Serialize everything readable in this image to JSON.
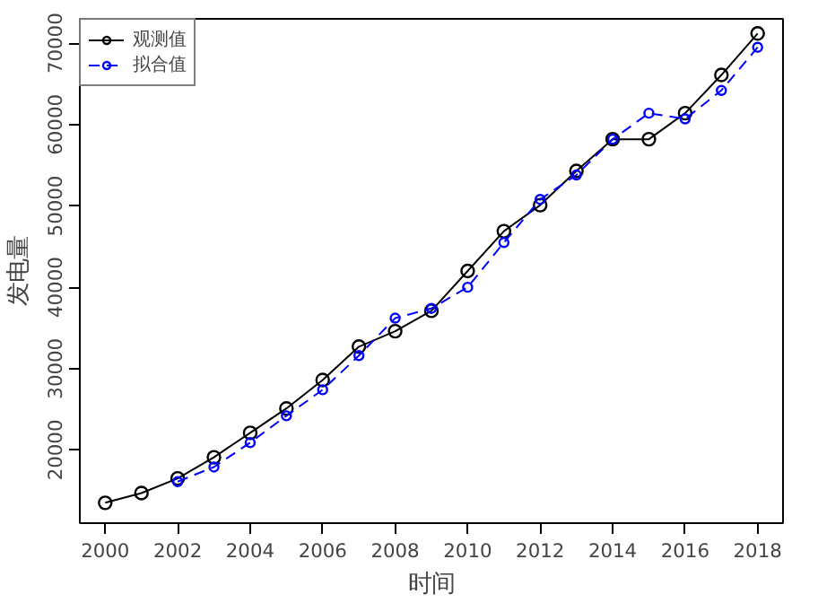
{
  "chart_data": {
    "type": "line",
    "xlabel": "时间",
    "ylabel": "发电量",
    "x": [
      2000,
      2001,
      2002,
      2003,
      2004,
      2005,
      2006,
      2007,
      2008,
      2009,
      2010,
      2011,
      2012,
      2013,
      2014,
      2015,
      2016,
      2017,
      2018
    ],
    "series": [
      {
        "name": "观测值",
        "color": "#000000",
        "line_style": "solid",
        "values": [
          13500,
          14700,
          16500,
          19100,
          22100,
          25100,
          28600,
          32700,
          34600,
          37100,
          42000,
          46900,
          50100,
          54300,
          58200,
          58200,
          61400,
          66100,
          71200
        ]
      },
      {
        "name": "拟合值",
        "color": "#0000ff",
        "line_style": "dashed",
        "values": [
          null,
          null,
          16100,
          17900,
          20900,
          24200,
          27400,
          31600,
          36200,
          37400,
          40000,
          45500,
          50800,
          53800,
          58200,
          61400,
          60700,
          64200,
          69500
        ]
      }
    ],
    "xlim": [
      1999.3,
      2018.7
    ],
    "ylim": [
      11000,
      73000
    ],
    "xticks": [
      2000,
      2002,
      2004,
      2006,
      2008,
      2010,
      2012,
      2014,
      2016,
      2018
    ],
    "yticks": [
      20000,
      30000,
      40000,
      50000,
      60000,
      70000
    ],
    "marker": "circle",
    "grid": false,
    "legend": "top left"
  }
}
